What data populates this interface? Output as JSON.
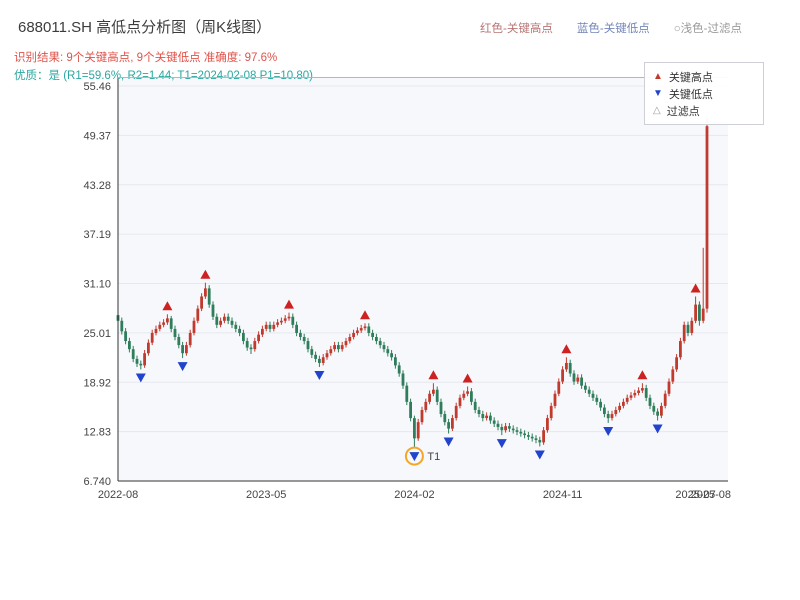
{
  "header": {
    "title": "688011.SH 高低点分析图（周K线图）",
    "top_legend": [
      {
        "label": "红色-关键高点"
      },
      {
        "label": "蓝色-关键低点"
      },
      {
        "label": "○浅色-过滤点"
      }
    ],
    "result_line": "识别结果: 9个关键高点, 9个关键低点  准确度: 97.6%",
    "quality_line": "优质：是 (R1=59.6%, R2=1.44; T1=2024-02-08 P1=10.80)"
  },
  "chart_data": {
    "type": "candlestick",
    "title": "688011.SH 周K线 高低点分析",
    "interval": "weekly",
    "legend": {
      "items": [
        {
          "glyph": "▲",
          "label": "关键高点"
        },
        {
          "glyph": "▼",
          "label": "关键低点"
        },
        {
          "glyph": "△",
          "label": "过滤点"
        }
      ]
    },
    "colors": {
      "up": "#c03a2e",
      "down": "#2e7d5b",
      "key_high": "#cc2222",
      "key_low": "#2244cc",
      "filter": "#999999",
      "t1": "#f5a623",
      "plot_bg": "#f7f8fb",
      "grid": "#e6e8f0"
    },
    "y_axis": {
      "range": [
        6.74,
        55.46
      ],
      "ticks": [
        {
          "value": 55.46,
          "label": "55.46"
        },
        {
          "value": 49.37,
          "label": "49.37"
        },
        {
          "value": 43.28,
          "label": "43.28"
        },
        {
          "value": 37.19,
          "label": "37.19"
        },
        {
          "value": 31.1,
          "label": "31.10"
        },
        {
          "value": 25.01,
          "label": "25.01"
        },
        {
          "value": 18.92,
          "label": "18.92"
        },
        {
          "value": 12.83,
          "label": "12.83"
        },
        {
          "value": 6.74,
          "label": "6.740"
        }
      ]
    },
    "x_axis": {
      "ticks": [
        {
          "week": 0,
          "label": "2022-08"
        },
        {
          "week": 39,
          "label": "2023-05"
        },
        {
          "week": 78,
          "label": "2024-02"
        },
        {
          "week": 117,
          "label": "2024-11"
        },
        {
          "week": 152,
          "label": "2025-07"
        },
        {
          "week": 156,
          "label": "2025-08"
        }
      ]
    },
    "candles": [
      [
        27.2,
        27.6,
        26.1,
        26.5
      ],
      [
        26.5,
        26.9,
        24.8,
        25.2
      ],
      [
        25.2,
        25.6,
        23.6,
        24.0
      ],
      [
        24.0,
        24.4,
        22.6,
        23.0
      ],
      [
        23.0,
        23.4,
        21.4,
        21.8
      ],
      [
        21.8,
        22.2,
        20.8,
        21.2
      ],
      [
        21.2,
        21.6,
        20.5,
        21.0
      ],
      [
        21.0,
        22.9,
        20.7,
        22.5
      ],
      [
        22.5,
        24.2,
        22.2,
        23.8
      ],
      [
        23.8,
        25.4,
        23.5,
        25.0
      ],
      [
        25.0,
        25.9,
        24.7,
        25.5
      ],
      [
        25.5,
        26.4,
        25.2,
        26.0
      ],
      [
        26.0,
        26.7,
        25.7,
        26.3
      ],
      [
        26.3,
        27.3,
        26.0,
        26.8
      ],
      [
        26.8,
        27.1,
        25.1,
        25.5
      ],
      [
        25.5,
        25.9,
        24.1,
        24.5
      ],
      [
        24.5,
        24.9,
        23.1,
        23.5
      ],
      [
        23.5,
        23.9,
        21.9,
        22.5
      ],
      [
        22.5,
        23.9,
        22.2,
        23.5
      ],
      [
        23.5,
        25.4,
        23.2,
        25.0
      ],
      [
        25.0,
        26.9,
        24.7,
        26.5
      ],
      [
        26.5,
        28.4,
        26.2,
        28.0
      ],
      [
        28.0,
        29.9,
        27.7,
        29.5
      ],
      [
        29.5,
        31.2,
        29.2,
        30.5
      ],
      [
        30.5,
        30.9,
        28.1,
        28.5
      ],
      [
        28.5,
        28.9,
        26.6,
        27.0
      ],
      [
        27.0,
        27.4,
        25.6,
        26.0
      ],
      [
        26.0,
        26.9,
        25.7,
        26.5
      ],
      [
        26.5,
        27.4,
        26.2,
        27.0
      ],
      [
        27.0,
        27.4,
        26.1,
        26.5
      ],
      [
        26.5,
        26.9,
        25.6,
        26.0
      ],
      [
        26.0,
        26.4,
        25.1,
        25.5
      ],
      [
        25.5,
        25.9,
        24.6,
        25.0
      ],
      [
        25.0,
        25.4,
        23.6,
        24.0
      ],
      [
        24.0,
        24.4,
        22.8,
        23.2
      ],
      [
        23.2,
        23.6,
        22.4,
        23.0
      ],
      [
        23.0,
        24.4,
        22.7,
        24.0
      ],
      [
        24.0,
        25.2,
        23.7,
        24.8
      ],
      [
        24.8,
        25.9,
        24.5,
        25.5
      ],
      [
        25.5,
        26.4,
        25.2,
        26.0
      ],
      [
        26.0,
        26.4,
        25.1,
        25.5
      ],
      [
        25.5,
        26.4,
        25.2,
        26.0
      ],
      [
        26.0,
        26.7,
        25.7,
        26.3
      ],
      [
        26.3,
        26.9,
        26.0,
        26.5
      ],
      [
        26.5,
        27.2,
        26.2,
        26.8
      ],
      [
        26.8,
        27.5,
        26.5,
        27.0
      ],
      [
        27.0,
        27.4,
        25.6,
        26.0
      ],
      [
        26.0,
        26.4,
        24.6,
        25.0
      ],
      [
        25.0,
        25.4,
        24.1,
        24.5
      ],
      [
        24.5,
        24.9,
        23.6,
        24.0
      ],
      [
        24.0,
        24.4,
        22.6,
        23.0
      ],
      [
        23.0,
        23.4,
        21.9,
        22.3
      ],
      [
        22.3,
        22.7,
        21.4,
        21.8
      ],
      [
        21.8,
        22.2,
        20.8,
        21.3
      ],
      [
        21.3,
        22.4,
        21.0,
        22.0
      ],
      [
        22.0,
        22.9,
        21.7,
        22.5
      ],
      [
        22.5,
        23.4,
        22.2,
        23.0
      ],
      [
        23.0,
        23.9,
        22.7,
        23.5
      ],
      [
        23.5,
        23.9,
        22.6,
        23.0
      ],
      [
        23.0,
        23.9,
        22.7,
        23.5
      ],
      [
        23.5,
        24.4,
        23.2,
        24.0
      ],
      [
        24.0,
        24.9,
        23.7,
        24.5
      ],
      [
        24.5,
        25.4,
        24.2,
        25.0
      ],
      [
        25.0,
        25.7,
        24.7,
        25.3
      ],
      [
        25.3,
        26.0,
        25.0,
        25.6
      ],
      [
        25.6,
        26.2,
        25.3,
        25.8
      ],
      [
        25.8,
        26.2,
        24.6,
        25.0
      ],
      [
        25.0,
        25.4,
        24.1,
        24.5
      ],
      [
        24.5,
        24.9,
        23.6,
        24.0
      ],
      [
        24.0,
        24.4,
        23.1,
        23.5
      ],
      [
        23.5,
        23.9,
        22.6,
        23.0
      ],
      [
        23.0,
        23.4,
        22.1,
        22.5
      ],
      [
        22.5,
        22.9,
        21.6,
        22.0
      ],
      [
        22.0,
        22.4,
        20.6,
        21.0
      ],
      [
        21.0,
        21.4,
        19.6,
        20.0
      ],
      [
        20.0,
        20.4,
        18.1,
        18.5
      ],
      [
        18.5,
        18.9,
        16.1,
        16.5
      ],
      [
        16.5,
        16.9,
        14.1,
        14.5
      ],
      [
        14.5,
        14.8,
        10.8,
        12.0
      ],
      [
        12.0,
        14.4,
        11.7,
        14.0
      ],
      [
        14.0,
        15.9,
        13.7,
        15.5
      ],
      [
        15.5,
        16.9,
        15.2,
        16.5
      ],
      [
        16.5,
        17.9,
        16.2,
        17.5
      ],
      [
        17.5,
        18.8,
        17.2,
        18.0
      ],
      [
        18.0,
        18.4,
        16.1,
        16.5
      ],
      [
        16.5,
        16.9,
        14.6,
        15.0
      ],
      [
        15.0,
        15.4,
        13.6,
        14.0
      ],
      [
        14.0,
        14.4,
        12.6,
        13.2
      ],
      [
        13.2,
        14.9,
        12.9,
        14.5
      ],
      [
        14.5,
        16.4,
        14.2,
        16.0
      ],
      [
        16.0,
        17.4,
        15.7,
        17.0
      ],
      [
        17.0,
        17.9,
        16.7,
        17.5
      ],
      [
        17.5,
        18.4,
        17.2,
        17.8
      ],
      [
        17.8,
        18.2,
        16.1,
        16.5
      ],
      [
        16.5,
        16.9,
        15.1,
        15.5
      ],
      [
        15.5,
        15.9,
        14.6,
        15.0
      ],
      [
        15.0,
        15.4,
        14.1,
        14.5
      ],
      [
        14.5,
        15.2,
        14.2,
        14.8
      ],
      [
        14.8,
        15.2,
        13.8,
        14.2
      ],
      [
        14.2,
        14.6,
        13.4,
        13.8
      ],
      [
        13.8,
        14.2,
        13.0,
        13.4
      ],
      [
        13.4,
        13.8,
        12.4,
        13.0
      ],
      [
        13.0,
        13.9,
        12.7,
        13.5
      ],
      [
        13.5,
        13.9,
        12.8,
        13.2
      ],
      [
        13.2,
        13.6,
        12.6,
        13.0
      ],
      [
        13.0,
        13.4,
        12.4,
        12.8
      ],
      [
        12.8,
        13.2,
        12.2,
        12.6
      ],
      [
        12.6,
        13.0,
        12.0,
        12.4
      ],
      [
        12.4,
        12.8,
        11.8,
        12.2
      ],
      [
        12.2,
        12.6,
        11.6,
        12.0
      ],
      [
        12.0,
        12.4,
        11.4,
        11.8
      ],
      [
        11.8,
        12.2,
        11.0,
        11.5
      ],
      [
        11.5,
        13.4,
        11.2,
        13.0
      ],
      [
        13.0,
        14.9,
        12.7,
        14.5
      ],
      [
        14.5,
        16.4,
        14.2,
        16.0
      ],
      [
        16.0,
        17.9,
        15.7,
        17.5
      ],
      [
        17.5,
        19.4,
        17.2,
        19.0
      ],
      [
        19.0,
        20.9,
        18.7,
        20.5
      ],
      [
        20.5,
        22.0,
        20.2,
        21.3
      ],
      [
        21.3,
        21.7,
        19.6,
        20.0
      ],
      [
        20.0,
        20.4,
        18.6,
        19.0
      ],
      [
        19.0,
        19.9,
        18.7,
        19.5
      ],
      [
        19.5,
        19.9,
        18.1,
        18.5
      ],
      [
        18.5,
        18.9,
        17.6,
        18.0
      ],
      [
        18.0,
        18.4,
        17.1,
        17.5
      ],
      [
        17.5,
        17.9,
        16.6,
        17.0
      ],
      [
        17.0,
        17.4,
        16.1,
        16.5
      ],
      [
        16.5,
        16.9,
        15.4,
        15.8
      ],
      [
        15.8,
        16.2,
        14.6,
        15.0
      ],
      [
        15.0,
        15.4,
        13.9,
        14.5
      ],
      [
        14.5,
        15.4,
        14.2,
        15.0
      ],
      [
        15.0,
        15.9,
        14.7,
        15.5
      ],
      [
        15.5,
        16.4,
        15.2,
        16.0
      ],
      [
        16.0,
        16.9,
        15.7,
        16.5
      ],
      [
        16.5,
        17.4,
        16.2,
        17.0
      ],
      [
        17.0,
        17.7,
        16.7,
        17.3
      ],
      [
        17.3,
        18.0,
        17.0,
        17.6
      ],
      [
        17.6,
        18.3,
        17.3,
        17.9
      ],
      [
        17.9,
        18.8,
        17.6,
        18.2
      ],
      [
        18.2,
        18.6,
        16.6,
        17.0
      ],
      [
        17.0,
        17.4,
        15.6,
        16.0
      ],
      [
        16.0,
        16.4,
        14.9,
        15.3
      ],
      [
        15.3,
        15.7,
        14.2,
        14.8
      ],
      [
        14.8,
        16.4,
        14.5,
        16.0
      ],
      [
        16.0,
        17.9,
        15.7,
        17.5
      ],
      [
        17.5,
        19.4,
        17.2,
        19.0
      ],
      [
        19.0,
        20.9,
        18.7,
        20.5
      ],
      [
        20.5,
        22.4,
        20.2,
        22.0
      ],
      [
        22.0,
        24.4,
        21.7,
        24.0
      ],
      [
        24.0,
        26.4,
        23.7,
        26.0
      ],
      [
        26.0,
        26.4,
        24.6,
        25.0
      ],
      [
        25.0,
        26.9,
        24.7,
        26.5
      ],
      [
        26.5,
        29.5,
        26.2,
        28.5
      ],
      [
        28.5,
        28.9,
        25.9,
        26.5
      ],
      [
        26.5,
        35.5,
        26.2,
        28.0
      ],
      [
        28.0,
        51.5,
        27.5,
        50.5
      ]
    ],
    "key_highs": [
      {
        "week": 13,
        "price": 27.3
      },
      {
        "week": 23,
        "price": 31.2
      },
      {
        "week": 45,
        "price": 27.5
      },
      {
        "week": 65,
        "price": 26.2
      },
      {
        "week": 83,
        "price": 18.8
      },
      {
        "week": 92,
        "price": 18.4
      },
      {
        "week": 118,
        "price": 22.0
      },
      {
        "week": 138,
        "price": 18.8
      },
      {
        "week": 152,
        "price": 29.5
      }
    ],
    "key_lows": [
      {
        "week": 6,
        "price": 20.5
      },
      {
        "week": 17,
        "price": 21.9
      },
      {
        "week": 53,
        "price": 20.8
      },
      {
        "week": 78,
        "price": 10.8
      },
      {
        "week": 87,
        "price": 12.6
      },
      {
        "week": 101,
        "price": 12.4
      },
      {
        "week": 111,
        "price": 11.0
      },
      {
        "week": 129,
        "price": 13.9
      },
      {
        "week": 142,
        "price": 14.2
      }
    ],
    "t1": {
      "week": 78,
      "price": 10.8,
      "label": "T1",
      "date": "2024-02-08",
      "value": "10.80"
    }
  }
}
